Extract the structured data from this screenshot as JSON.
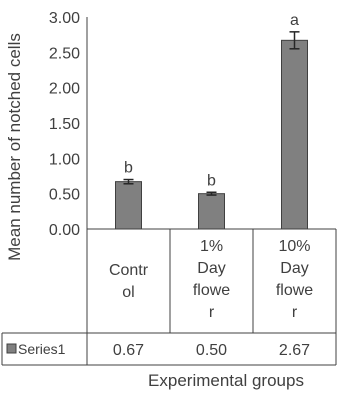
{
  "chart_data": {
    "type": "bar",
    "ylabel": "Mean number of notched cells",
    "xlabel": "Experimental groups",
    "ylim": [
      0,
      3
    ],
    "y_ticks": [
      "0.00",
      "0.50",
      "1.00",
      "1.50",
      "2.00",
      "2.50",
      "3.00"
    ],
    "categories": [
      [
        "Contr",
        "ol"
      ],
      [
        "1%",
        "Day",
        "flowe",
        "r"
      ],
      [
        "10%",
        "Day",
        "flowe",
        "r"
      ]
    ],
    "series": [
      {
        "name": "Series1",
        "values": [
          0.67,
          0.5,
          2.67
        ],
        "value_labels": [
          "0.67",
          "0.50",
          "2.67"
        ],
        "error": [
          0.03,
          0.02,
          0.12
        ]
      }
    ],
    "annotations": [
      "b",
      "b",
      "a"
    ],
    "legend": "data-table",
    "bar_color": "#808080",
    "bar_edge_color": "#404040",
    "grid": false
  }
}
